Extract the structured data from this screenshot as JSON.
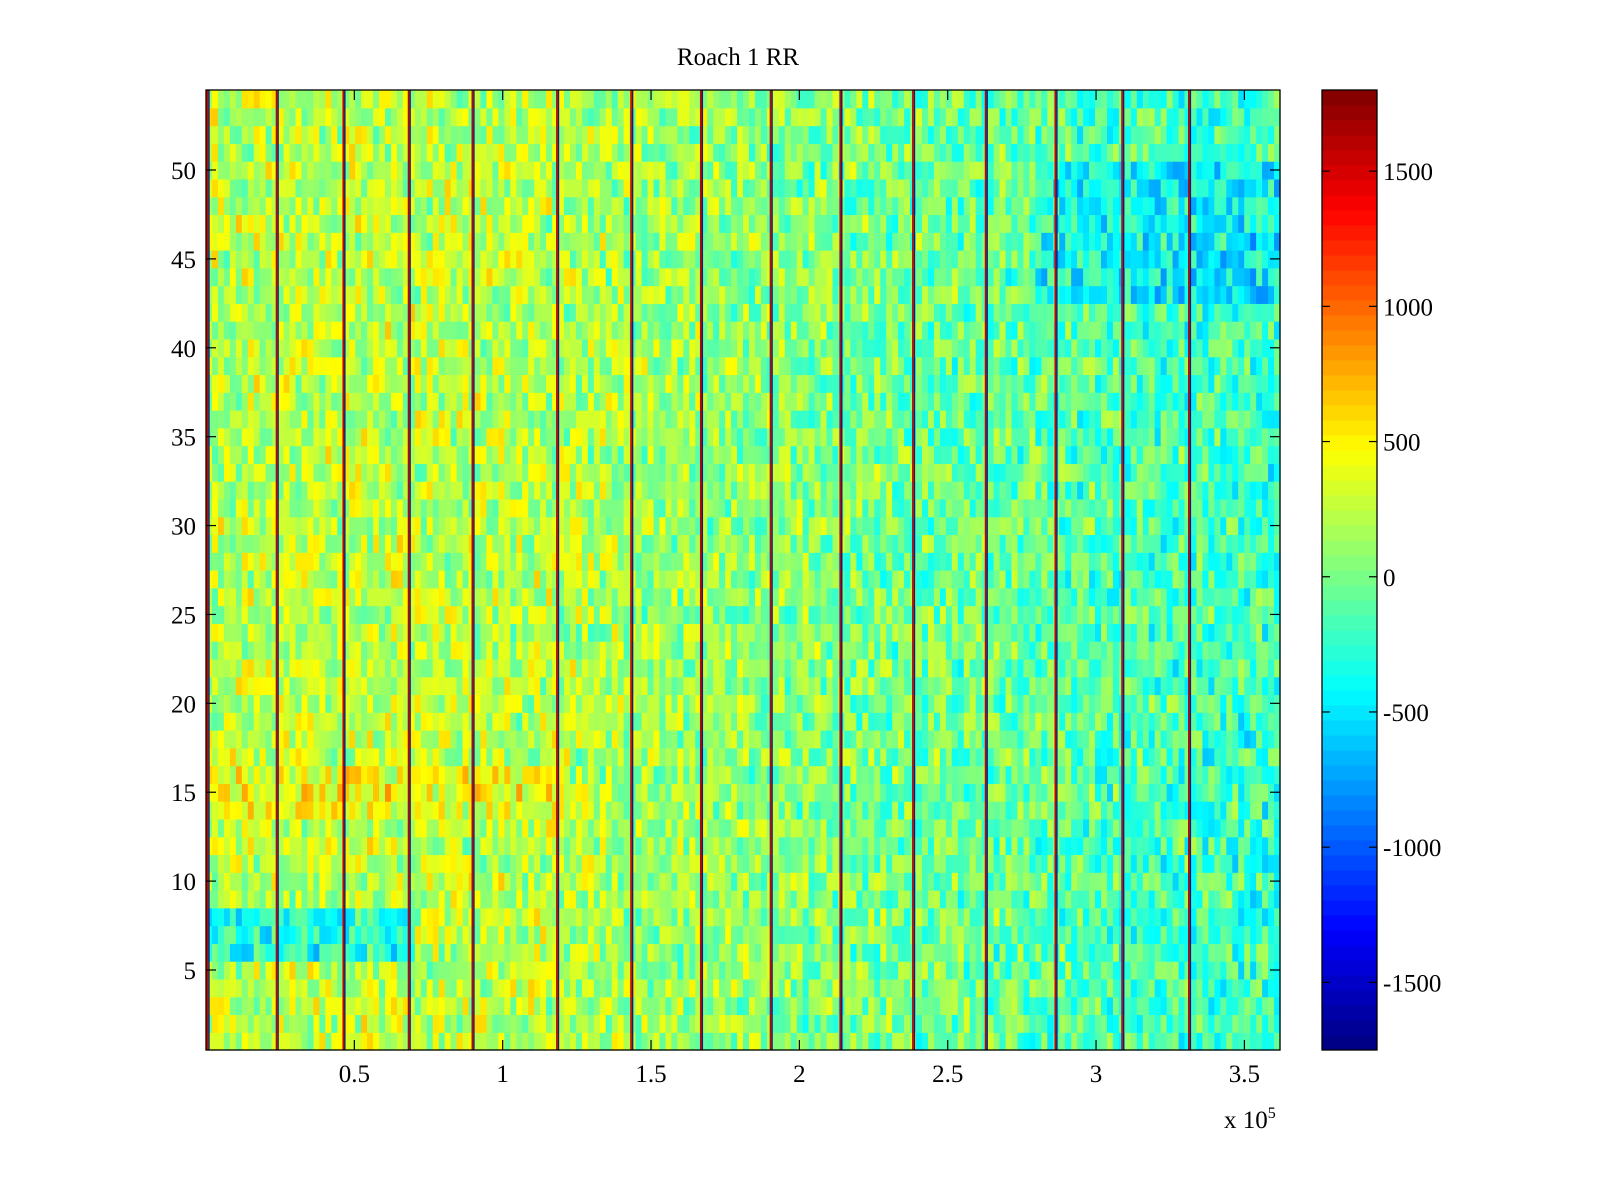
{
  "chart_data": {
    "type": "heatmap",
    "title": "Roach 1 RR",
    "xlabel": "",
    "ylabel": "",
    "x_multiplier_label": "x 10",
    "x_multiplier_exponent": "5",
    "xlim": [
      0,
      362000
    ],
    "ylim": [
      0.5,
      54.5
    ],
    "x_ticks": [
      {
        "value": 50000,
        "label": "0.5"
      },
      {
        "value": 100000,
        "label": "1"
      },
      {
        "value": 150000,
        "label": "1.5"
      },
      {
        "value": 200000,
        "label": "2"
      },
      {
        "value": 250000,
        "label": "2.5"
      },
      {
        "value": 300000,
        "label": "3"
      },
      {
        "value": 350000,
        "label": "3.5"
      }
    ],
    "y_ticks": [
      {
        "value": 5,
        "label": "5"
      },
      {
        "value": 10,
        "label": "10"
      },
      {
        "value": 15,
        "label": "15"
      },
      {
        "value": 20,
        "label": "20"
      },
      {
        "value": 25,
        "label": "25"
      },
      {
        "value": 30,
        "label": "30"
      },
      {
        "value": 35,
        "label": "35"
      },
      {
        "value": 40,
        "label": "40"
      },
      {
        "value": 45,
        "label": "45"
      },
      {
        "value": 50,
        "label": "50"
      }
    ],
    "rows": 54,
    "colormap": "jet",
    "colorbar": {
      "range": [
        -1750,
        1800
      ],
      "ticks": [
        {
          "value": -1500,
          "label": "-1500"
        },
        {
          "value": -1000,
          "label": "-1000"
        },
        {
          "value": -500,
          "label": "-500"
        },
        {
          "value": 0,
          "label": "0"
        },
        {
          "value": 500,
          "label": "500"
        },
        {
          "value": 1000,
          "label": "1000"
        },
        {
          "value": 1500,
          "label": "1500"
        }
      ]
    },
    "stripe_x_positions": [
      700,
      24000,
      46500,
      68500,
      90000,
      118500,
      143500,
      167000,
      190500,
      214000,
      238500,
      263000,
      286500,
      309000,
      331500
    ],
    "value_trend": [
      {
        "x": 0,
        "value": 250
      },
      {
        "x": 100000,
        "value": 230
      },
      {
        "x": 180000,
        "value": 80
      },
      {
        "x": 260000,
        "value": -60
      },
      {
        "x": 362000,
        "value": -220
      }
    ],
    "grid": false
  }
}
